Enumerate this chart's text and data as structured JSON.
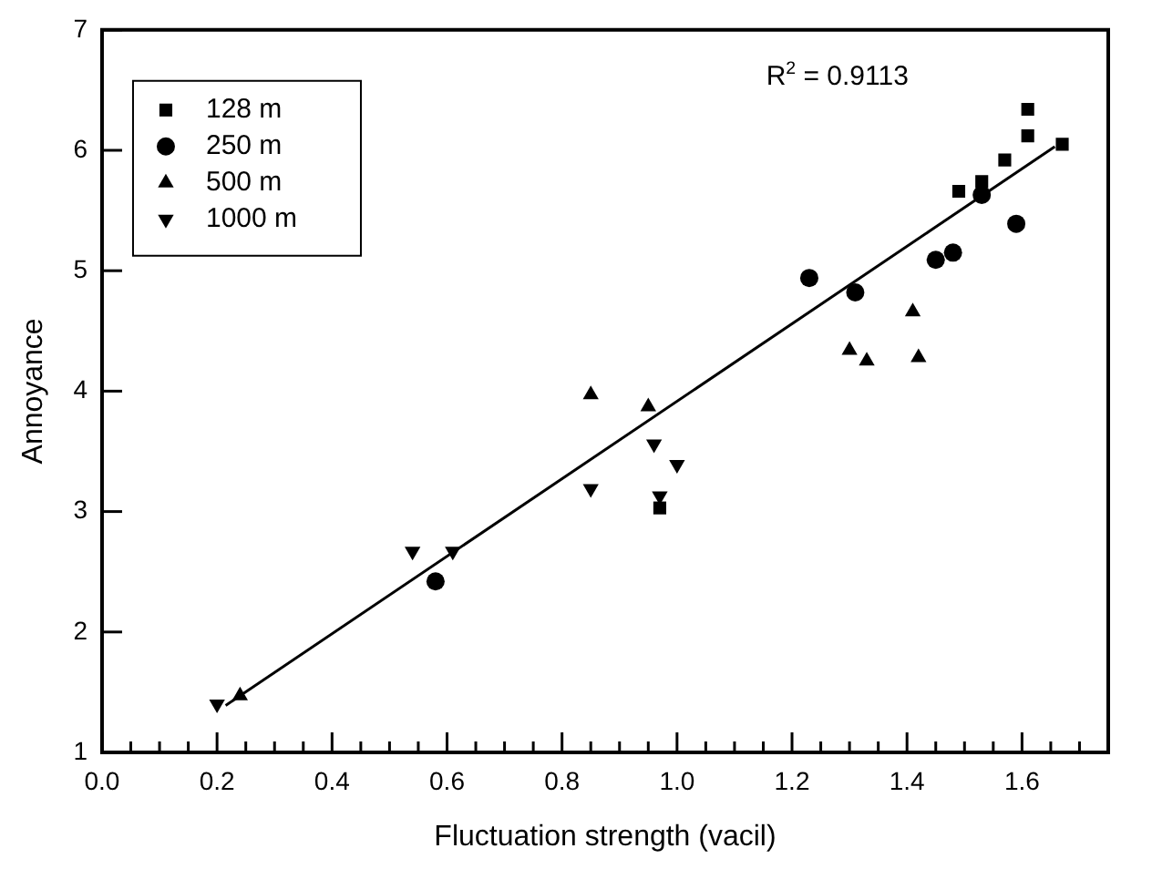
{
  "chart_data": {
    "type": "scatter",
    "xlabel": "Fluctuation strength (vacil)",
    "ylabel": "Annoyance",
    "xlim": [
      0,
      1.75
    ],
    "ylim": [
      1,
      7
    ],
    "xticks": [
      {
        "value": 0,
        "label": "0.0"
      },
      {
        "value": 0.05,
        "label": null
      },
      {
        "value": 0.1,
        "label": null
      },
      {
        "value": 0.15,
        "label": null
      },
      {
        "value": 0.2,
        "label": "0.2"
      },
      {
        "value": 0.25,
        "label": null
      },
      {
        "value": 0.3,
        "label": null
      },
      {
        "value": 0.35,
        "label": null
      },
      {
        "value": 0.4,
        "label": "0.4"
      },
      {
        "value": 0.45,
        "label": null
      },
      {
        "value": 0.5,
        "label": null
      },
      {
        "value": 0.55,
        "label": null
      },
      {
        "value": 0.6,
        "label": "0.6"
      },
      {
        "value": 0.65,
        "label": null
      },
      {
        "value": 0.7,
        "label": null
      },
      {
        "value": 0.75,
        "label": null
      },
      {
        "value": 0.8,
        "label": "0.8"
      },
      {
        "value": 0.85,
        "label": null
      },
      {
        "value": 0.9,
        "label": null
      },
      {
        "value": 0.95,
        "label": null
      },
      {
        "value": 1.0,
        "label": "1.0"
      },
      {
        "value": 1.05,
        "label": null
      },
      {
        "value": 1.1,
        "label": null
      },
      {
        "value": 1.15,
        "label": null
      },
      {
        "value": 1.2,
        "label": "1.2"
      },
      {
        "value": 1.25,
        "label": null
      },
      {
        "value": 1.3,
        "label": null
      },
      {
        "value": 1.35,
        "label": null
      },
      {
        "value": 1.4,
        "label": "1.4"
      },
      {
        "value": 1.45,
        "label": null
      },
      {
        "value": 1.5,
        "label": null
      },
      {
        "value": 1.55,
        "label": null
      },
      {
        "value": 1.6,
        "label": "1.6"
      },
      {
        "value": 1.65,
        "label": null
      },
      {
        "value": 1.7,
        "label": null
      }
    ],
    "yticks": [
      1,
      2,
      3,
      4,
      5,
      6,
      7
    ],
    "grid": false,
    "legend": "top left",
    "annotations": [
      "R$^{2}$ = 0.9113"
    ],
    "series": [
      {
        "name": "128 m",
        "color": "#000000",
        "marker": "square",
        "x": [
          1.61,
          1.61,
          1.67,
          1.57,
          1.53,
          1.49,
          0.97
        ],
        "values": [
          6.34,
          6.12,
          6.05,
          5.92,
          5.74,
          5.66,
          3.03
        ]
      },
      {
        "name": "250 m",
        "color": "#000000",
        "marker": "circle",
        "x": [
          1.23,
          1.31,
          1.45,
          1.48,
          1.53,
          1.59,
          0.58
        ],
        "values": [
          4.94,
          4.82,
          5.09,
          5.15,
          5.63,
          5.39,
          2.42
        ]
      },
      {
        "name": "500 m",
        "color": "#000000",
        "marker": "triangle",
        "x": [
          1.41,
          1.3,
          1.33,
          1.42,
          0.85,
          0.95,
          0.24
        ],
        "values": [
          4.66,
          4.34,
          4.25,
          4.28,
          3.97,
          3.87,
          1.47
        ]
      },
      {
        "name": "1000 m",
        "color": "#000000",
        "marker": "triangle-down",
        "x": [
          0.96,
          1.0,
          0.85,
          0.97,
          0.54,
          0.61,
          0.2
        ],
        "values": [
          3.56,
          3.39,
          3.19,
          3.13,
          2.67,
          2.67,
          1.4
        ]
      },
      {
        "type": "line",
        "color": "#000000",
        "marker": "none",
        "x": [
          0.215,
          1.657
        ],
        "values": [
          1.39,
          6.03
        ]
      }
    ]
  }
}
